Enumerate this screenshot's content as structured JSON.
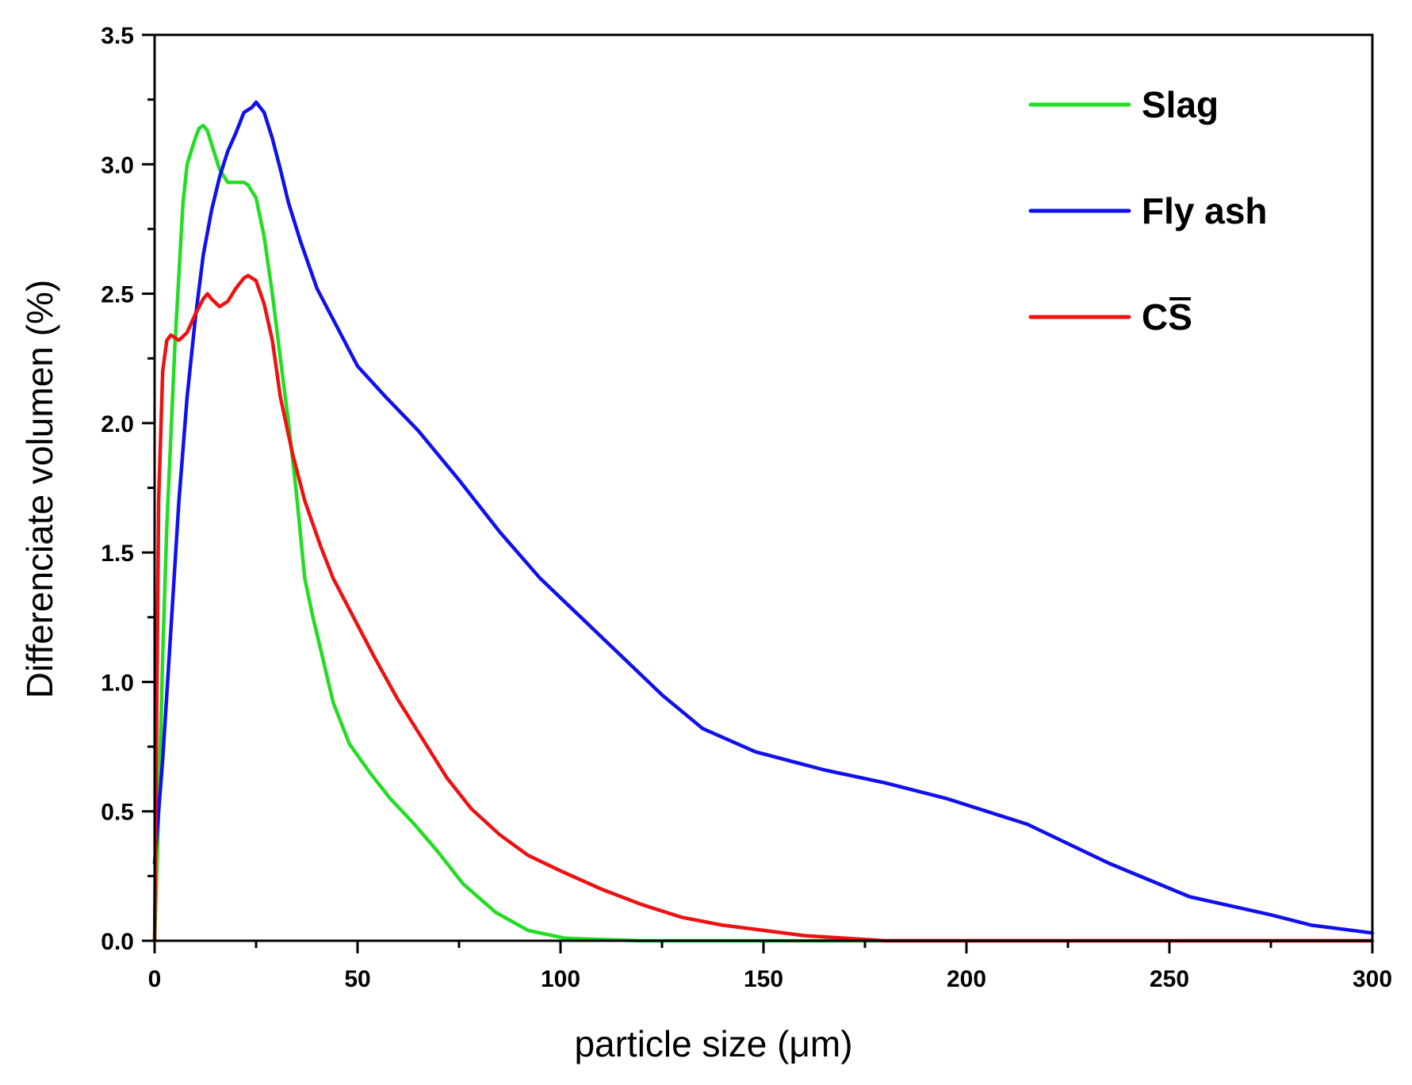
{
  "chart_data": {
    "type": "line",
    "title": "",
    "xlabel": "particle size (μm)",
    "ylabel": "Differenciate volumen (%)",
    "xlim": [
      0,
      300
    ],
    "ylim": [
      0,
      3.5
    ],
    "xticks": [
      "0",
      "50",
      "100",
      "150",
      "200",
      "250",
      "300"
    ],
    "yticks": [
      "0.0",
      "0.5",
      "1.0",
      "1.5",
      "2.0",
      "2.5",
      "3.0",
      "3.5"
    ],
    "grid": false,
    "legend_position": "top-right",
    "series": [
      {
        "name": "Slag",
        "legend_label": "Slag",
        "color": "#22dd22",
        "x": [
          0,
          1,
          2,
          3,
          5,
          7,
          8,
          10,
          11,
          12,
          13,
          14,
          16,
          18,
          20,
          22,
          23,
          25,
          27,
          29,
          31,
          33,
          35,
          37,
          39,
          41,
          44,
          48,
          53,
          58,
          64,
          70,
          76,
          84,
          92,
          101,
          110,
          120,
          140,
          160,
          200,
          250,
          300
        ],
        "y": [
          0,
          0.5,
          1.1,
          1.6,
          2.3,
          2.85,
          3.0,
          3.1,
          3.14,
          3.15,
          3.13,
          3.08,
          2.98,
          2.93,
          2.93,
          2.93,
          2.92,
          2.87,
          2.72,
          2.5,
          2.25,
          2.0,
          1.72,
          1.4,
          1.25,
          1.12,
          0.92,
          0.76,
          0.65,
          0.55,
          0.45,
          0.34,
          0.22,
          0.11,
          0.04,
          0.01,
          0.005,
          0,
          0,
          0,
          0,
          0,
          0
        ],
        "width": 4.5
      },
      {
        "name": "Fly ash",
        "legend_label": "Fly ash",
        "color": "#1010ee",
        "x": [
          0,
          2,
          4,
          6,
          8,
          10,
          12,
          14,
          16,
          18,
          20,
          22,
          24,
          25,
          27,
          29,
          31,
          33,
          36,
          40,
          45,
          50,
          57,
          65,
          75,
          85,
          95,
          105,
          115,
          125,
          135,
          148,
          165,
          180,
          195,
          215,
          235,
          255,
          275,
          285,
          300
        ],
        "y": [
          0.3,
          0.7,
          1.2,
          1.7,
          2.1,
          2.4,
          2.65,
          2.82,
          2.95,
          3.05,
          3.12,
          3.2,
          3.22,
          3.24,
          3.2,
          3.1,
          2.98,
          2.85,
          2.7,
          2.52,
          2.37,
          2.22,
          2.1,
          1.97,
          1.78,
          1.58,
          1.4,
          1.25,
          1.1,
          0.95,
          0.82,
          0.73,
          0.66,
          0.61,
          0.55,
          0.45,
          0.3,
          0.17,
          0.1,
          0.06,
          0.03
        ],
        "width": 4.5
      },
      {
        "name": "C̅S",
        "legend_label": "CS",
        "legend_overline": "S",
        "color": "#ee1111",
        "x": [
          0,
          1,
          2,
          3,
          4,
          5,
          6,
          8,
          10,
          12,
          13,
          14,
          16,
          18,
          20,
          22,
          23,
          25,
          27,
          29,
          31,
          34,
          37,
          41,
          44,
          49,
          54,
          60,
          66,
          72,
          78,
          85,
          92,
          100,
          110,
          120,
          130,
          140,
          150,
          160,
          170,
          180,
          200,
          250,
          300
        ],
        "y": [
          0,
          1.7,
          2.2,
          2.32,
          2.34,
          2.33,
          2.32,
          2.35,
          2.42,
          2.48,
          2.5,
          2.48,
          2.45,
          2.47,
          2.52,
          2.56,
          2.57,
          2.55,
          2.46,
          2.32,
          2.1,
          1.88,
          1.7,
          1.52,
          1.4,
          1.25,
          1.1,
          0.93,
          0.78,
          0.63,
          0.51,
          0.41,
          0.33,
          0.27,
          0.2,
          0.14,
          0.09,
          0.06,
          0.04,
          0.02,
          0.01,
          0,
          0,
          0,
          0
        ],
        "width": 4.5
      }
    ]
  }
}
